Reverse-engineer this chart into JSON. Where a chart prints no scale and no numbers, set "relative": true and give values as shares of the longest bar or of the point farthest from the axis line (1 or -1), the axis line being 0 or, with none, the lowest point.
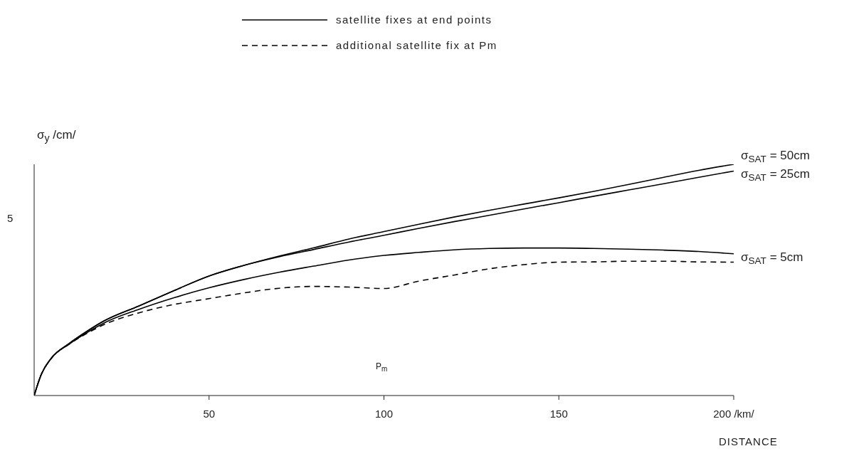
{
  "chart_data": {
    "type": "line",
    "ylabel": "σ$_{y}$ /cm/",
    "xlabel": "DISTANCE",
    "relative": true,
    "x": [
      0,
      2,
      5,
      10,
      15,
      20,
      30,
      40,
      50,
      60,
      70,
      80,
      90,
      100,
      110,
      120,
      130,
      140,
      150,
      160,
      170,
      180,
      190,
      200
    ],
    "xlim": [
      0,
      200
    ],
    "xticks": [
      50,
      100,
      150,
      {
        "value": 200,
        "label": "200 /km/"
      }
    ],
    "legend": "top",
    "marker": "none",
    "series": [
      {
        "name": "σ$_{SAT}$ = 50cm",
        "color": "#000000",
        "line_style": "solid",
        "values": [
          0,
          0.09,
          0.163,
          0.225,
          0.277,
          0.323,
          0.388,
          0.454,
          0.517,
          0.563,
          0.603,
          0.639,
          0.677,
          0.709,
          0.741,
          0.772,
          0.801,
          0.828,
          0.855,
          0.883,
          0.913,
          0.944,
          0.974,
          1
        ]
      },
      {
        "name": "σ$_{SAT}$ = 25cm",
        "color": "#000000",
        "line_style": "solid",
        "values": [
          0,
          0.09,
          0.163,
          0.225,
          0.277,
          0.323,
          0.388,
          0.454,
          0.517,
          0.563,
          0.6,
          0.632,
          0.664,
          0.693,
          0.723,
          0.752,
          0.779,
          0.807,
          0.834,
          0.862,
          0.889,
          0.916,
          0.944,
          0.971
        ]
      },
      {
        "name": "σ$_{SAT}$ = 5cm",
        "color": "#000000",
        "line_style": "solid",
        "values": [
          0,
          0.09,
          0.163,
          0.222,
          0.271,
          0.314,
          0.373,
          0.423,
          0.466,
          0.502,
          0.533,
          0.56,
          0.586,
          0.606,
          0.619,
          0.63,
          0.636,
          0.638,
          0.638,
          0.636,
          0.633,
          0.629,
          0.623,
          0.613
        ]
      },
      {
        "color": "#000000",
        "line_style": "dashed",
        "values": [
          0,
          0.09,
          0.163,
          0.222,
          0.268,
          0.307,
          0.358,
          0.394,
          0.419,
          0.444,
          0.464,
          0.472,
          0.469,
          0.463,
          0.495,
          0.521,
          0.548,
          0.566,
          0.577,
          0.578,
          0.581,
          0.581,
          0.578,
          0.577
        ]
      }
    ],
    "annotations": [
      "satellite fixes at end points",
      "additional satellite fix at Pm",
      "P$_{m}$",
      "5"
    ]
  }
}
